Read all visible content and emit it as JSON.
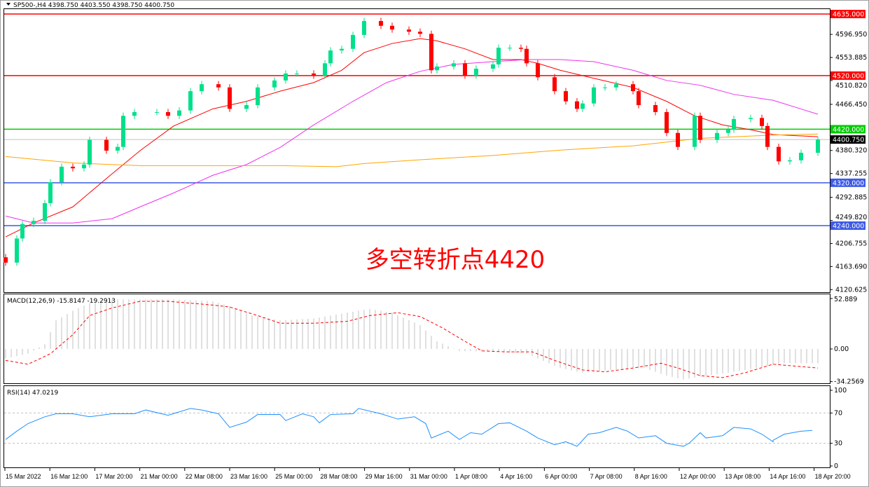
{
  "header": {
    "symbol_menu_icon": "triangle-down-icon",
    "title": "SP500-,H4  4398.750 4403.550 4398.750 4400.750"
  },
  "annotation": "多空转折点4420",
  "colors": {
    "bull": "#00e08a",
    "bear": "#ff0000",
    "ma_fast": "#ff0000",
    "ma_mid": "#ee30ee",
    "ma_slow": "#ffa500",
    "level_red": "#ff0000",
    "level_green": "#00cc00",
    "level_blue": "#3c5ae6",
    "macd_hist": "#c0c0c0",
    "macd_signal": "#ff0000",
    "rsi": "#1e90ff"
  },
  "chart_data": [
    {
      "type": "candlestick",
      "title": "SP500-,H4",
      "ohlc_last": {
        "open": 4398.75,
        "high": 4403.55,
        "low": 4398.75,
        "close": 4400.75
      },
      "ylim": [
        4120.625,
        4645
      ],
      "y_ticks": [
        "4596.950",
        "4553.885",
        "4510.820",
        "4466.450",
        "4380.320",
        "4337.255",
        "4292.885",
        "4249.820",
        "4206.755",
        "4163.690",
        "4120.625"
      ],
      "x_ticks": [
        "15 Mar 2022",
        "16 Mar 12:00",
        "17 Mar 20:00",
        "21 Mar 00:00",
        "22 Mar 08:00",
        "23 Mar 16:00",
        "25 Mar 00:00",
        "28 Mar 08:00",
        "29 Mar 16:00",
        "31 Mar 00:00",
        "1 Apr 08:00",
        "4 Apr 16:00",
        "6 Apr 00:00",
        "7 Apr 08:00",
        "8 Apr 16:00",
        "12 Apr 00:00",
        "13 Apr 08:00",
        "14 Apr 16:00",
        "18 Apr 20:00"
      ],
      "levels": [
        {
          "value": 4635.0,
          "label": "4635.000",
          "color": "level_red"
        },
        {
          "value": 4520.0,
          "label": "4520.000",
          "color": "level_red"
        },
        {
          "value": 4420.0,
          "label": "4420.000",
          "color": "level_green"
        },
        {
          "value": 4320.0,
          "label": "4320.000",
          "color": "level_blue"
        },
        {
          "value": 4240.0,
          "label": "4240.000",
          "color": "level_blue"
        }
      ],
      "current_price": {
        "value": 4400.75,
        "label": "4400.750"
      },
      "bars": [
        0,
        2,
        3,
        5,
        7,
        8,
        10,
        12,
        14,
        15,
        18,
        20,
        21,
        23,
        27,
        29,
        31,
        33,
        35,
        38,
        40,
        43,
        45,
        48,
        50,
        52,
        55,
        57,
        58,
        60,
        62,
        64,
        67,
        69,
        72,
        74,
        76,
        77,
        80,
        82,
        84,
        87,
        88,
        90,
        92,
        93,
        95,
        98,
        100,
        102,
        103,
        105,
        107,
        109,
        112,
        113,
        116,
        118,
        120,
        123,
        124,
        127,
        129,
        130,
        133,
        135,
        136,
        138,
        140,
        142,
        145
      ],
      "closes": [
        4171,
        4216,
        4243,
        4249,
        4282,
        4321,
        4350,
        4347,
        4354,
        4400,
        4380,
        4387,
        4445,
        4452,
        4452,
        4445,
        4455,
        4491,
        4504,
        4498,
        4458,
        4465,
        4498,
        4511,
        4524,
        4524,
        4520,
        4543,
        4567,
        4570,
        4596,
        4622,
        4613,
        4606,
        4602,
        4598,
        4530,
        4537,
        4543,
        4520,
        4533,
        4541,
        4572,
        4572,
        4570,
        4543,
        4517,
        4491,
        4472,
        4458,
        4468,
        4498,
        4498,
        4504,
        4491,
        4465,
        4452,
        4413,
        4387,
        4445,
        4400,
        4413,
        4419,
        4439,
        4441,
        4426,
        4387,
        4360,
        4362,
        4376,
        4400.75
      ],
      "moving_averages": [
        {
          "color": "ma_fast",
          "bars": [
            0,
            5,
            12,
            18,
            24,
            30,
            37,
            43,
            49,
            55,
            60,
            64,
            69,
            74,
            77,
            82,
            87,
            92,
            95,
            99,
            105,
            112,
            118,
            123,
            128,
            133,
            137,
            145
          ],
          "values": [
            4219,
            4245,
            4275,
            4328,
            4380,
            4426,
            4458,
            4472,
            4491,
            4507,
            4530,
            4563,
            4580,
            4589,
            4585,
            4570,
            4550,
            4550,
            4543,
            4530,
            4515,
            4498,
            4472,
            4445,
            4428,
            4419,
            4410,
            4406
          ]
        },
        {
          "color": "ma_mid",
          "bars": [
            0,
            5,
            12,
            19,
            24,
            30,
            37,
            43,
            49,
            55,
            62,
            68,
            74,
            80,
            87,
            93,
            99,
            105,
            112,
            118,
            124,
            130,
            137,
            145
          ],
          "values": [
            4258,
            4245,
            4245,
            4253,
            4275,
            4301,
            4334,
            4354,
            4386,
            4428,
            4472,
            4507,
            4528,
            4541,
            4546,
            4550,
            4550,
            4546,
            4530,
            4511,
            4502,
            4485,
            4474,
            4448
          ]
        },
        {
          "color": "ma_slow",
          "bars": [
            0,
            12,
            24,
            37,
            49,
            59,
            64,
            74,
            87,
            99,
            112,
            118,
            124,
            137,
            145
          ],
          "values": [
            4369,
            4357,
            4352,
            4352,
            4352,
            4350,
            4356,
            4363,
            4371,
            4381,
            4389,
            4396,
            4403,
            4409,
            4411
          ]
        }
      ]
    },
    {
      "type": "bar+line",
      "title": "MACD(12,26,9) -15.8147 -19.2913",
      "ylim": [
        -34.2569,
        52.889
      ],
      "y_ticks": [
        "52.889",
        "0.00",
        "-34.2569"
      ],
      "histogram": {
        "bars": [
          0,
          4,
          7,
          9,
          12,
          15,
          19,
          24,
          30,
          37,
          40,
          44,
          49,
          55,
          61,
          65,
          69,
          74,
          77,
          81,
          87,
          93,
          99,
          103,
          108,
          114,
          118,
          121,
          125,
          129,
          134,
          139,
          145
        ],
        "values": [
          -10,
          -5,
          5,
          30,
          40,
          48,
          52,
          52,
          52,
          50,
          45,
          35,
          30,
          32,
          38,
          42,
          38,
          25,
          8,
          -2,
          -3,
          -5,
          -20,
          -25,
          -22,
          -20,
          -28,
          -32,
          -28,
          -25,
          -20,
          -15,
          -15
        ]
      },
      "signal": {
        "bars": [
          0,
          4,
          8,
          12,
          15,
          19,
          24,
          29,
          37,
          40,
          45,
          49,
          55,
          61,
          65,
          70,
          74,
          78,
          82,
          85,
          89,
          94,
          98,
          103,
          107,
          112,
          117,
          120,
          124,
          128,
          132,
          137,
          141,
          145
        ],
        "values": [
          -12,
          -16,
          -5,
          15,
          35,
          43,
          50,
          50,
          46,
          44,
          35,
          27,
          27,
          29,
          35,
          38,
          34,
          22,
          8,
          -2,
          -3,
          -3,
          -12,
          -22,
          -24,
          -20,
          -15,
          -20,
          -28,
          -30,
          -25,
          -16,
          -18,
          -20
        ]
      }
    },
    {
      "type": "line",
      "title": "RSI(14) 47.0219",
      "ylim": [
        0,
        100
      ],
      "y_ticks": [
        "100",
        "70",
        "30",
        "0"
      ],
      "reference_lines": [
        70,
        30
      ],
      "bars": [
        0,
        2,
        4,
        7,
        9,
        12,
        15,
        19,
        23,
        25,
        29,
        33,
        35,
        38,
        40,
        43,
        45,
        49,
        50,
        53,
        55,
        56,
        58,
        62,
        63,
        67,
        70,
        73,
        75,
        76,
        79,
        81,
        83,
        85,
        88,
        90,
        93,
        95,
        98,
        100,
        102,
        104,
        106,
        109,
        111,
        113,
        116,
        118,
        121,
        122,
        124,
        125,
        128,
        130,
        133,
        135,
        137,
        137,
        139,
        142,
        144
      ],
      "values": [
        35,
        46,
        56,
        65,
        69,
        69,
        65,
        69,
        69,
        74,
        67,
        76,
        74,
        69,
        51,
        58,
        68,
        68,
        60,
        69,
        65,
        57,
        68,
        69,
        76,
        69,
        62,
        65,
        56,
        37,
        46,
        35,
        44,
        42,
        56,
        57,
        46,
        37,
        28,
        32,
        26,
        42,
        44,
        51,
        46,
        37,
        40,
        30,
        26,
        30,
        44,
        37,
        40,
        51,
        49,
        42,
        32,
        34,
        42,
        46,
        47
      ]
    }
  ]
}
